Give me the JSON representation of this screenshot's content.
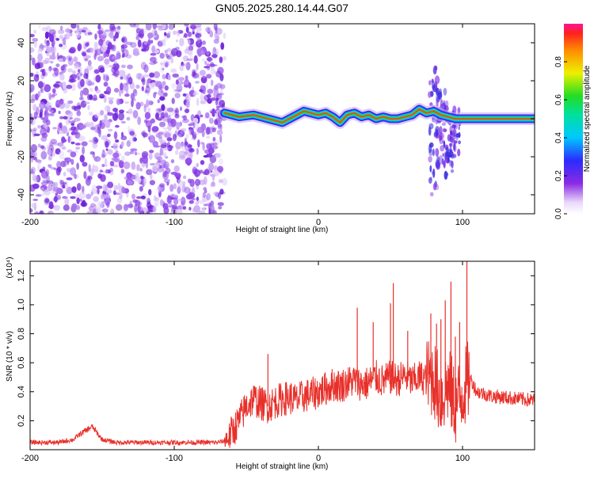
{
  "title": "GN05.2025.280.14.44.G07",
  "colors": {
    "snr_line": "#e8302a",
    "purple_dots": "#7a2ee8",
    "track_core": "#ff3b2f"
  },
  "chart_data": [
    {
      "type": "heatmap",
      "name": "spectrogram",
      "xlabel": "Height of straight line (km)",
      "ylabel": "Frequency (Hz)",
      "xlim": [
        -200,
        150
      ],
      "ylim": [
        -50,
        50
      ],
      "xticks": [
        -200,
        -100,
        0,
        100
      ],
      "xtick_labels": [
        "-200",
        "-100",
        "0",
        "100"
      ],
      "yticks": [
        -40,
        -20,
        0,
        20,
        40
      ],
      "ytick_labels": [
        "-40",
        "-20",
        "0",
        "20",
        "40"
      ],
      "colorbar": {
        "label": "Normalized spectral amplitude",
        "range": [
          0,
          1
        ],
        "ticks": [
          0,
          0.2,
          0.4,
          0.6,
          0.8
        ],
        "tick_labels": [
          "0.0",
          "0.2",
          "0.4",
          "0.6",
          "0.8"
        ]
      },
      "noise_region_x": [
        -200,
        -65
      ],
      "track": {
        "x": [
          -65,
          -55,
          -45,
          -40,
          -35,
          -30,
          -25,
          -20,
          -15,
          -10,
          -5,
          0,
          5,
          10,
          15,
          20,
          25,
          30,
          35,
          40,
          45,
          50,
          55,
          60,
          65,
          70,
          75,
          80,
          85,
          90,
          95,
          100,
          110,
          120,
          130,
          140,
          150
        ],
        "freq": [
          3,
          1,
          2,
          1,
          0,
          -1,
          -2,
          0,
          2,
          4,
          3,
          2,
          3,
          1,
          -2,
          2,
          3,
          1,
          2,
          0,
          1,
          0,
          0,
          1,
          2,
          5,
          3,
          4,
          2,
          1,
          0,
          0,
          0,
          0,
          0,
          0,
          0
        ]
      },
      "spread_regions": [
        {
          "x": 80,
          "fmin": -40,
          "fmax": 30
        },
        {
          "x": 85,
          "fmin": -25,
          "fmax": 15
        },
        {
          "x": 90,
          "fmin": -30,
          "fmax": 10
        },
        {
          "x": 95,
          "fmin": -20,
          "fmax": 5
        }
      ]
    },
    {
      "type": "line",
      "name": "snr",
      "xlabel": "Height of straight line (km)",
      "ylabel": "SNR (10 * v/v)",
      "yscale_label": "(x10⁴)",
      "xlim": [
        -200,
        150
      ],
      "ylim": [
        0,
        1.3
      ],
      "xticks": [
        -200,
        -100,
        0,
        100
      ],
      "xtick_labels": [
        "-200",
        "-100",
        "0",
        "100"
      ],
      "yticks": [
        0.2,
        0.4,
        0.6,
        0.8,
        1.0,
        1.2
      ],
      "ytick_labels": [
        "0.2",
        "0.4",
        "0.6",
        "0.8",
        "1.0",
        "1.2"
      ],
      "series": [
        {
          "name": "SNR",
          "x": [
            -200,
            -180,
            -170,
            -165,
            -160,
            -157,
            -150,
            -140,
            -120,
            -100,
            -80,
            -70,
            -65,
            -60,
            -55,
            -50,
            -45,
            -40,
            -35,
            -30,
            -25,
            -20,
            -15,
            -10,
            -5,
            0,
            5,
            10,
            15,
            20,
            25,
            30,
            35,
            40,
            45,
            50,
            55,
            60,
            65,
            70,
            75,
            80,
            85,
            90,
            95,
            100,
            105,
            110,
            120,
            130,
            140,
            150
          ],
          "y": [
            0.05,
            0.05,
            0.07,
            0.11,
            0.14,
            0.16,
            0.07,
            0.05,
            0.05,
            0.05,
            0.05,
            0.05,
            0.06,
            0.12,
            0.2,
            0.3,
            0.35,
            0.32,
            0.3,
            0.33,
            0.35,
            0.36,
            0.34,
            0.37,
            0.38,
            0.4,
            0.42,
            0.45,
            0.44,
            0.46,
            0.48,
            0.45,
            0.46,
            0.5,
            0.47,
            0.5,
            0.48,
            0.51,
            0.47,
            0.5,
            0.49,
            0.5,
            0.35,
            0.45,
            0.3,
            0.4,
            0.5,
            0.4,
            0.37,
            0.36,
            0.35,
            0.34
          ]
        },
        {
          "name": "spikes",
          "x": [
            -35,
            27,
            38,
            50,
            52,
            62,
            78,
            82,
            85,
            88,
            92,
            95,
            98,
            103
          ],
          "y": [
            0.66,
            0.98,
            0.88,
            1.01,
            1.15,
            0.82,
            0.94,
            0.87,
            0.9,
            1.03,
            1.16,
            0.78,
            0.88,
            1.3
          ]
        }
      ]
    }
  ]
}
